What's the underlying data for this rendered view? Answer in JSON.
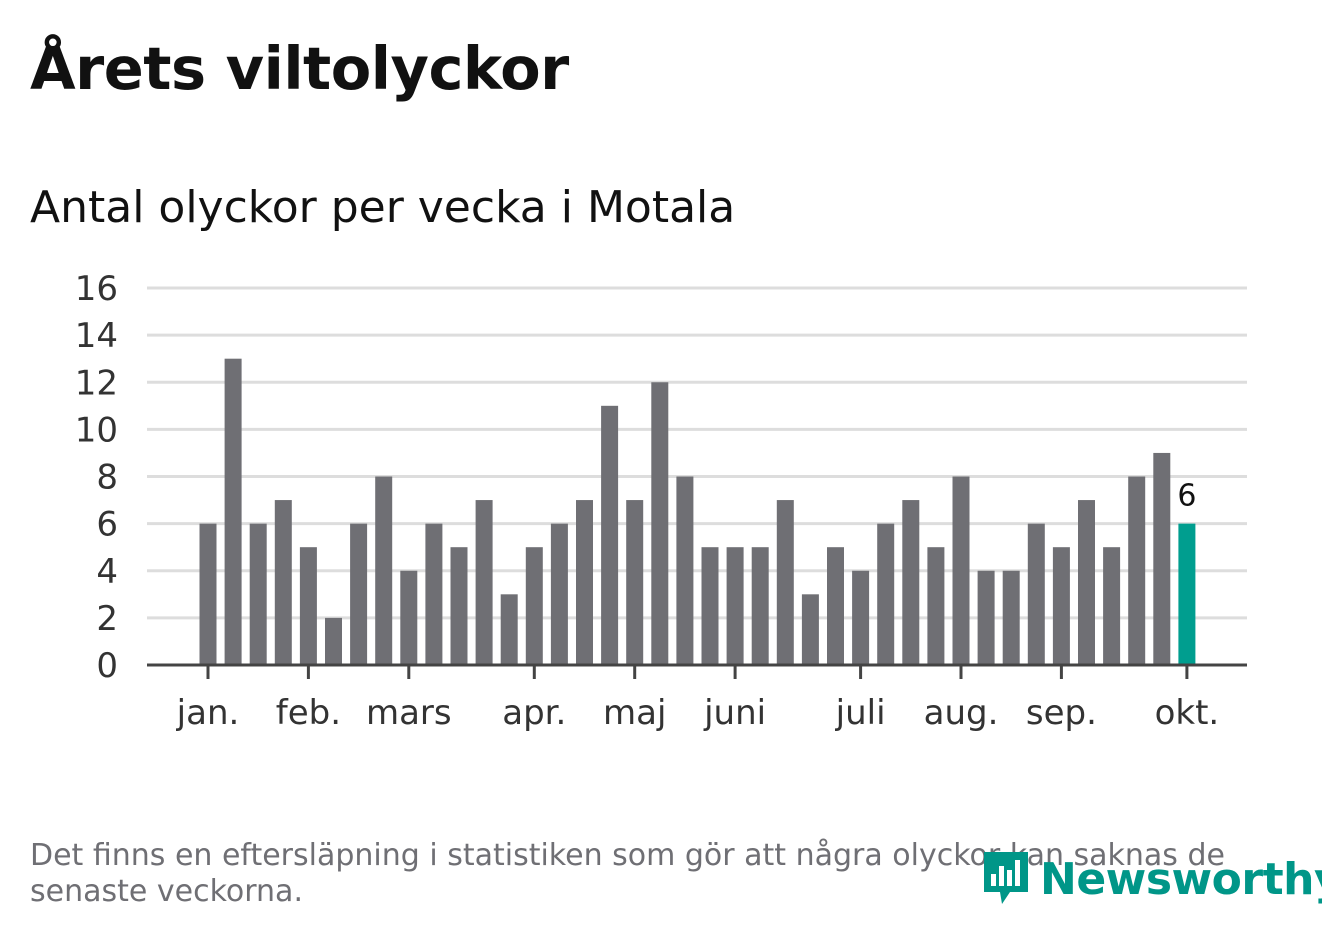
{
  "title": "Årets viltolyckor",
  "chart_data": {
    "type": "bar",
    "title": "Årets viltolyckor",
    "subtitle": "Antal olyckor per vecka i Motala",
    "xlabel": "",
    "ylabel": "",
    "ylim": [
      0,
      16
    ],
    "yticks": [
      0,
      2,
      4,
      6,
      8,
      10,
      12,
      14,
      16
    ],
    "grid": true,
    "values": [
      6,
      13,
      6,
      7,
      5,
      2,
      6,
      8,
      4,
      6,
      5,
      7,
      3,
      5,
      6,
      7,
      11,
      7,
      12,
      8,
      5,
      5,
      5,
      7,
      3,
      5,
      4,
      6,
      7,
      5,
      8,
      4,
      4,
      6,
      5,
      7,
      5,
      8,
      9,
      6
    ],
    "month_labels": [
      {
        "label": "jan.",
        "week_index": 0
      },
      {
        "label": "feb.",
        "week_index": 4
      },
      {
        "label": "mars",
        "week_index": 8
      },
      {
        "label": "apr.",
        "week_index": 13
      },
      {
        "label": "maj",
        "week_index": 17
      },
      {
        "label": "juni",
        "week_index": 21
      },
      {
        "label": "juli",
        "week_index": 26
      },
      {
        "label": "aug.",
        "week_index": 30
      },
      {
        "label": "sep.",
        "week_index": 34
      },
      {
        "label": "okt.",
        "week_index": 39
      }
    ],
    "highlight_index": 39,
    "highlight_label": "6",
    "bar_color": "#6f6f74",
    "highlight_color": "#009e8f",
    "grid_color": "#dddddd",
    "axis_color": "#444444"
  },
  "footnote": "Det finns en eftersläpning i statistiken som gör att några olyckor kan saknas de senaste veckorna.",
  "brand": {
    "name": "Newsworthy",
    "color": "#009688",
    "icon": "newsworthy-logo-icon"
  }
}
